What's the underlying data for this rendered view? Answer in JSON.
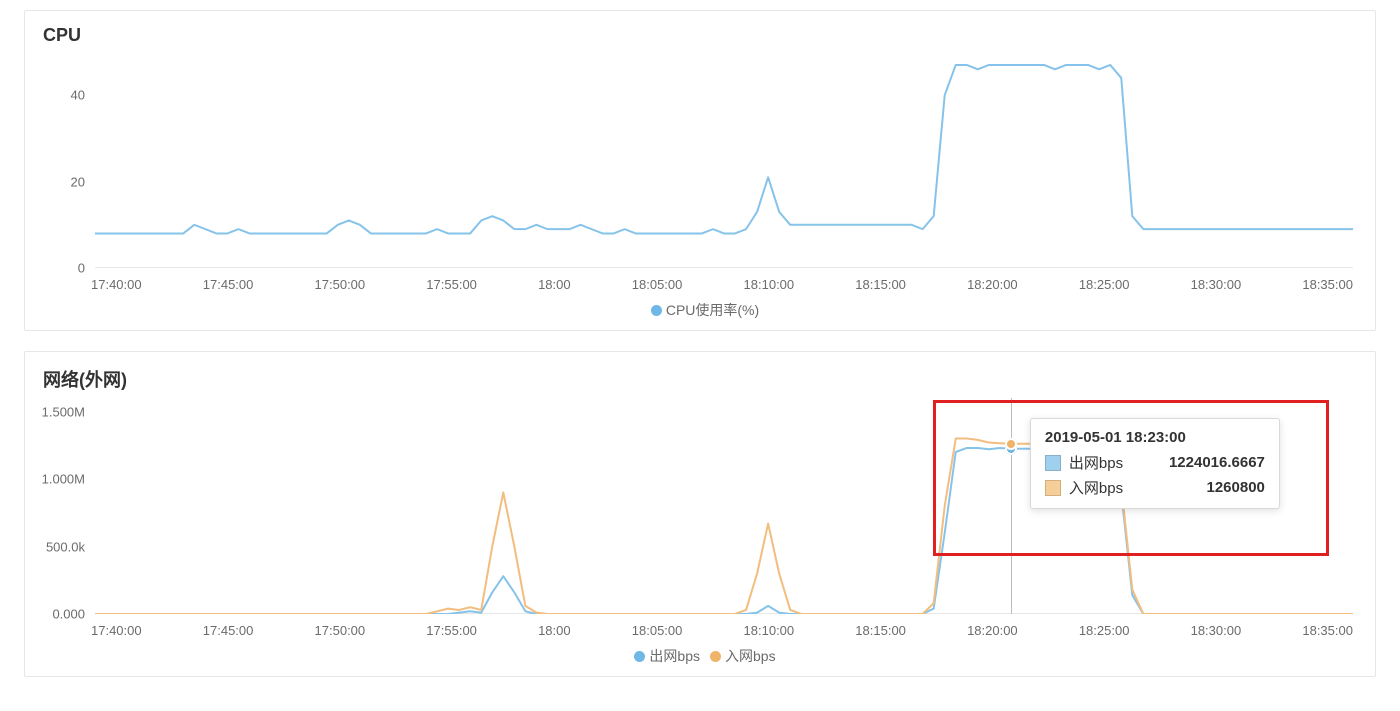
{
  "colors": {
    "axis_text": "#6b6b6b",
    "axis_line": "#cfcfcf",
    "panel_border": "#e6e6e6",
    "highlight": "#e02020",
    "series_blue": "#6fb7e6",
    "series_orange": "#f0b36a",
    "line_blue": "#86c3ea",
    "line_orange": "#f2bd7e",
    "tooltip_border": "#d9d9d9"
  },
  "x_axis": {
    "labels": [
      "17:40:00",
      "17:45:00",
      "17:50:00",
      "17:55:00",
      "18:00",
      "18:05:00",
      "18:10:00",
      "18:15:00",
      "18:20:00",
      "18:25:00",
      "18:30:00",
      "18:35:00"
    ],
    "fontsize": 13
  },
  "cpu_chart": {
    "title": "CPU",
    "type": "line",
    "ylim": [
      0,
      50
    ],
    "yticks": [
      {
        "v": 0,
        "label": "0"
      },
      {
        "v": 20,
        "label": "20"
      },
      {
        "v": 40,
        "label": "40"
      }
    ],
    "series": [
      {
        "name": "CPU使用率(%)",
        "color": "#86c3ea",
        "legend_dot_color": "#6fb7e6",
        "width": 2,
        "data": [
          8,
          8,
          8,
          8,
          8,
          8,
          8,
          8,
          8,
          10,
          9,
          8,
          8,
          9,
          8,
          8,
          8,
          8,
          8,
          8,
          8,
          8,
          10,
          11,
          10,
          8,
          8,
          8,
          8,
          8,
          8,
          9,
          8,
          8,
          8,
          11,
          12,
          11,
          9,
          9,
          10,
          9,
          9,
          9,
          10,
          9,
          8,
          8,
          9,
          8,
          8,
          8,
          8,
          8,
          8,
          8,
          9,
          8,
          8,
          9,
          13,
          21,
          13,
          10,
          10,
          10,
          10,
          10,
          10,
          10,
          10,
          10,
          10,
          10,
          10,
          9,
          12,
          40,
          47,
          47,
          46,
          47,
          47,
          47,
          47,
          47,
          47,
          46,
          47,
          47,
          47,
          46,
          47,
          44,
          12,
          9,
          9,
          9,
          9,
          9,
          9,
          9,
          9,
          9,
          9,
          9,
          9,
          9,
          9,
          9,
          9,
          9,
          9,
          9,
          9
        ]
      }
    ],
    "legend": [
      {
        "label": "CPU使用率(%)",
        "color": "#6fb7e6"
      }
    ]
  },
  "net_chart": {
    "title": "网络(外网)",
    "type": "line",
    "ylim": [
      0,
      1600000
    ],
    "yticks": [
      {
        "v": 0,
        "label": "0.000"
      },
      {
        "v": 500000,
        "label": "500.0k"
      },
      {
        "v": 1000000,
        "label": "1.000M"
      },
      {
        "v": 1500000,
        "label": "1.500M"
      }
    ],
    "series": [
      {
        "name": "出网bps",
        "color": "#86c3ea",
        "legend_dot_color": "#6fb7e6",
        "width": 2,
        "data": [
          0,
          0,
          0,
          0,
          0,
          0,
          0,
          0,
          0,
          0,
          0,
          0,
          0,
          0,
          0,
          0,
          0,
          0,
          0,
          0,
          0,
          0,
          0,
          0,
          0,
          0,
          0,
          0,
          0,
          0,
          0,
          0,
          0,
          10000,
          20000,
          10000,
          160000,
          280000,
          160000,
          20000,
          0,
          0,
          0,
          0,
          0,
          0,
          0,
          0,
          0,
          0,
          0,
          0,
          0,
          0,
          0,
          0,
          0,
          0,
          0,
          0,
          10000,
          60000,
          10000,
          0,
          0,
          0,
          0,
          0,
          0,
          0,
          0,
          0,
          0,
          0,
          0,
          0,
          40000,
          600000,
          1200000,
          1230000,
          1230000,
          1220000,
          1230000,
          1224000,
          1224000,
          1224000,
          1224000,
          1224000,
          1224000,
          1224000,
          1224000,
          1220000,
          1210000,
          900000,
          140000,
          0,
          0,
          0,
          0,
          0,
          0,
          0,
          0,
          0,
          0,
          0,
          0,
          0,
          0,
          0,
          0,
          0,
          0,
          0,
          0
        ]
      },
      {
        "name": "入网bps",
        "color": "#f2bd7e",
        "legend_dot_color": "#f0b36a",
        "width": 2,
        "data": [
          0,
          0,
          0,
          0,
          0,
          0,
          0,
          0,
          0,
          0,
          0,
          0,
          0,
          0,
          0,
          0,
          0,
          0,
          0,
          0,
          0,
          0,
          0,
          0,
          0,
          0,
          0,
          0,
          0,
          0,
          0,
          20000,
          40000,
          30000,
          50000,
          30000,
          500000,
          900000,
          500000,
          60000,
          10000,
          0,
          0,
          0,
          0,
          0,
          0,
          0,
          0,
          0,
          0,
          0,
          0,
          0,
          0,
          0,
          0,
          0,
          0,
          30000,
          300000,
          670000,
          300000,
          30000,
          0,
          0,
          0,
          0,
          0,
          0,
          0,
          0,
          0,
          0,
          0,
          0,
          80000,
          800000,
          1300000,
          1300000,
          1290000,
          1270000,
          1265000,
          1260800,
          1260800,
          1260800,
          1260800,
          1260800,
          1260800,
          1260800,
          1260800,
          1260000,
          1250000,
          950000,
          180000,
          0,
          0,
          0,
          0,
          0,
          0,
          0,
          0,
          0,
          0,
          0,
          0,
          0,
          0,
          0,
          0,
          0,
          0,
          0,
          0
        ]
      }
    ],
    "legend": [
      {
        "label": "出网bps",
        "color": "#6fb7e6"
      },
      {
        "label": "入网bps",
        "color": "#f0b36a"
      }
    ],
    "hover": {
      "index": 83,
      "timestamp": "2019-05-01 18:23:00",
      "rows": [
        {
          "swatch": "#9fd0ee",
          "label": "出网bps",
          "value": "1224016.6667"
        },
        {
          "swatch": "#f5cf97",
          "label": "入网bps",
          "value": "1260800"
        }
      ]
    },
    "highlight_box": true
  }
}
